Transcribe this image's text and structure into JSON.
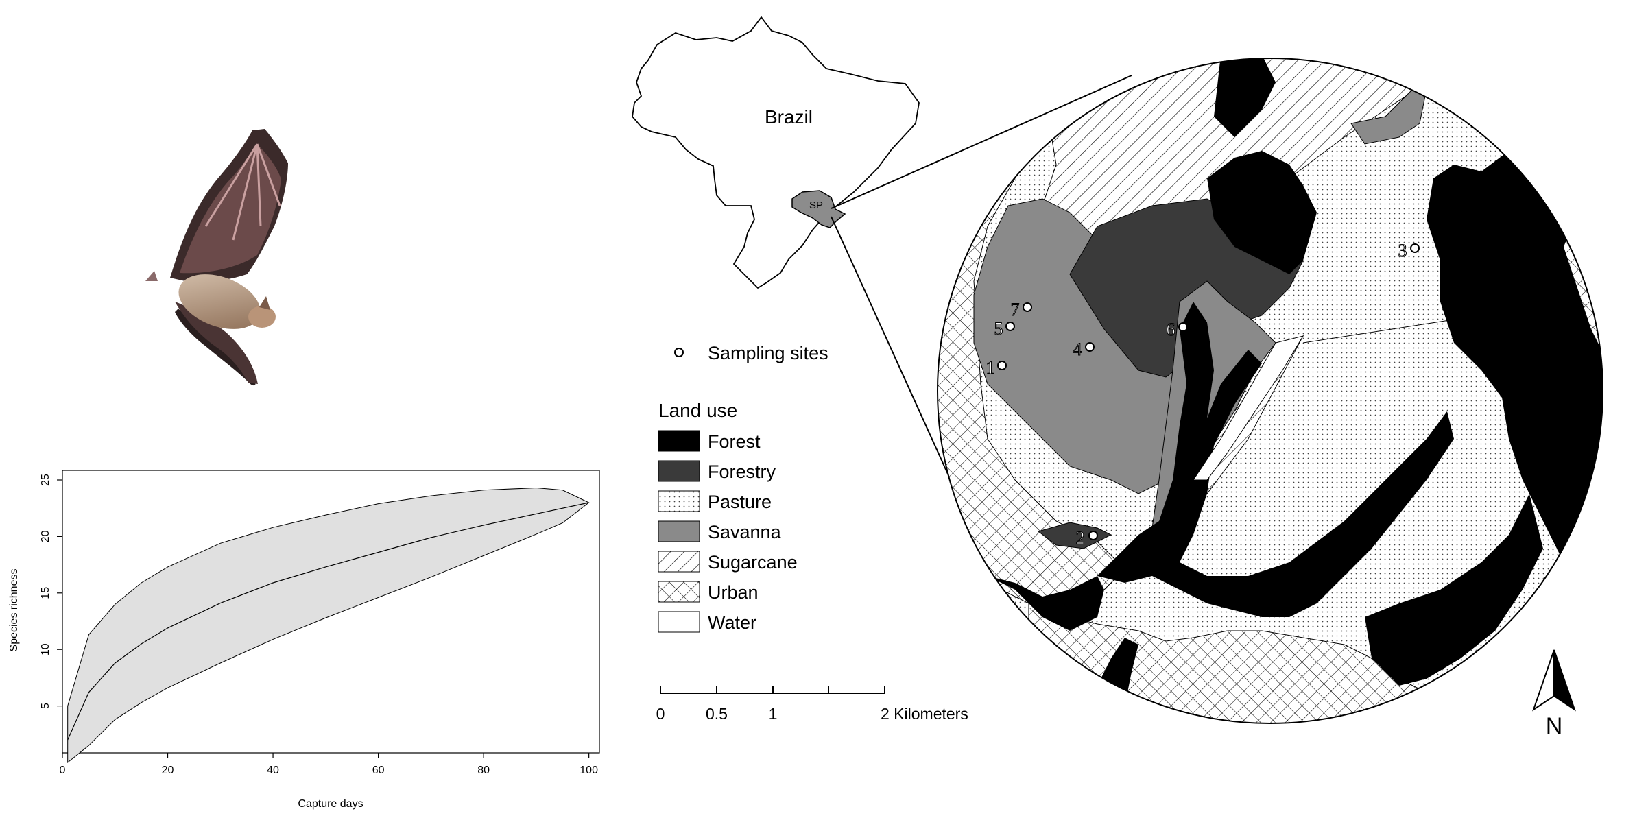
{
  "brazil_inset": {
    "country_label": "Brazil",
    "state_label": "SP"
  },
  "sampling": {
    "legend_label": "Sampling sites",
    "sites": [
      {
        "id": "1",
        "label": "1"
      },
      {
        "id": "2",
        "label": "2"
      },
      {
        "id": "3",
        "label": "3"
      },
      {
        "id": "4",
        "label": "4"
      },
      {
        "id": "5",
        "label": "5"
      },
      {
        "id": "6",
        "label": "6"
      },
      {
        "id": "7",
        "label": "7"
      }
    ]
  },
  "land_use_legend": {
    "title": "Land use",
    "items": [
      {
        "label": "Forest",
        "pattern": "solid-black",
        "color": "#000000"
      },
      {
        "label": "Forestry",
        "pattern": "solid-dark-gray",
        "color": "#3a3a3a"
      },
      {
        "label": "Pasture",
        "pattern": "dots",
        "color": "#ffffff"
      },
      {
        "label": "Savanna",
        "pattern": "solid-gray",
        "color": "#8a8a8a"
      },
      {
        "label": "Sugarcane",
        "pattern": "diagonal-hatch",
        "color": "#ffffff"
      },
      {
        "label": "Urban",
        "pattern": "cross-hatch",
        "color": "#ffffff"
      },
      {
        "label": "Water",
        "pattern": "solid-white",
        "color": "#ffffff"
      }
    ]
  },
  "scale_bar": {
    "ticks": [
      "0",
      "0.5",
      "1",
      "2 Kilometers"
    ]
  },
  "north_arrow": {
    "label": "N",
    "icon": "north-arrow-icon"
  },
  "bat_photo": {
    "icon": "bat-icon"
  },
  "chart_data": {
    "type": "area",
    "title": "",
    "xlabel": "Capture days",
    "ylabel": "Species richness",
    "xlim": [
      0,
      102
    ],
    "ylim": [
      0,
      25
    ],
    "xticks": [
      0,
      20,
      40,
      60,
      80,
      100
    ],
    "yticks": [
      5,
      10,
      15,
      20,
      25
    ],
    "grid": false,
    "legend": "none",
    "fill_color": "#e0e0e0",
    "x": [
      1,
      5,
      10,
      15,
      20,
      30,
      40,
      50,
      60,
      70,
      80,
      90,
      95,
      100
    ],
    "mean": [
      2,
      6.2,
      8.8,
      10.5,
      11.9,
      14.1,
      15.9,
      17.3,
      18.6,
      19.9,
      21,
      22,
      22.5,
      23
    ],
    "upper": [
      5,
      11.3,
      14,
      15.9,
      17.3,
      19.4,
      20.8,
      21.9,
      22.9,
      23.6,
      24.1,
      24.3,
      24.1,
      23
    ],
    "lower": [
      0,
      1.5,
      3.8,
      5.3,
      6.6,
      8.8,
      10.9,
      12.8,
      14.6,
      16.4,
      18.3,
      20.2,
      21.2,
      23
    ]
  }
}
